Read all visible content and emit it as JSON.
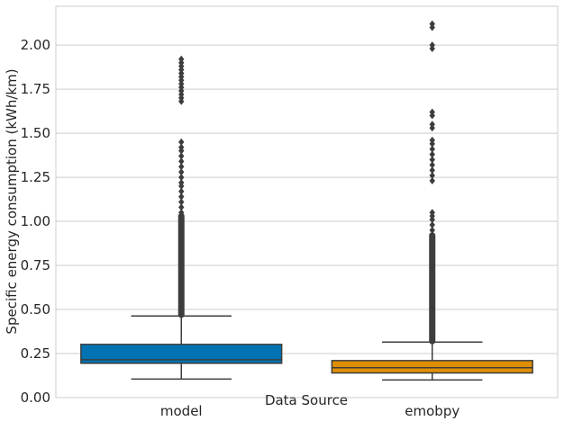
{
  "chart_data": {
    "type": "box",
    "title": "",
    "xlabel": "Data Source",
    "ylabel": "Specific energy consumption (kWh/km)",
    "ylim": [
      0,
      2.22
    ],
    "yticks": [
      "0.00",
      "0.25",
      "0.50",
      "0.75",
      "1.00",
      "1.25",
      "1.50",
      "1.75",
      "2.00"
    ],
    "grid": true,
    "categories": [
      "model",
      "emobpy"
    ],
    "series": [
      {
        "category": "model",
        "color": "#0173b2",
        "q1": 0.195,
        "median": 0.215,
        "q3": 0.302,
        "whisker_low": 0.105,
        "whisker_high": 0.463,
        "outliers_dense": [
          0.47,
          1.03
        ],
        "outliers": [
          1.05,
          1.08,
          1.11,
          1.14,
          1.17,
          1.2,
          1.22,
          1.25,
          1.28,
          1.31,
          1.34,
          1.37,
          1.4,
          1.42,
          1.45,
          1.68,
          1.7,
          1.72,
          1.74,
          1.76,
          1.78,
          1.8,
          1.82,
          1.84,
          1.86,
          1.88,
          1.9,
          1.92
        ]
      },
      {
        "category": "emobpy",
        "color": "#de8f05",
        "q1": 0.14,
        "median": 0.17,
        "q3": 0.21,
        "whisker_low": 0.1,
        "whisker_high": 0.315,
        "outliers_dense": [
          0.32,
          0.92
        ],
        "outliers": [
          0.95,
          0.98,
          1.01,
          1.03,
          1.05,
          1.23,
          1.26,
          1.29,
          1.32,
          1.35,
          1.38,
          1.41,
          1.44,
          1.46,
          1.53,
          1.55,
          1.6,
          1.62,
          1.98,
          2.0,
          2.1,
          2.12
        ]
      }
    ]
  }
}
